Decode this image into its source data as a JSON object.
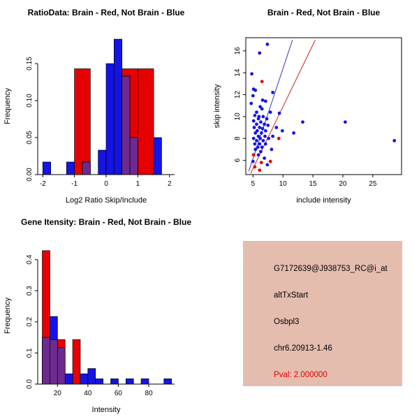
{
  "chart_data": [
    {
      "id": "ratio-hist",
      "type": "histogram",
      "title": "RatioData: Brain - Red, Not Brain - Blue",
      "xlabel": "Log2 Ratio Skip/Include",
      "ylabel": "Frequency",
      "xlim": [
        -2.16,
        2.16
      ],
      "ylim": [
        0,
        0.185
      ],
      "xticks": [
        -2,
        -1,
        0,
        1,
        2
      ],
      "xtick_labels": [
        "-2",
        "-1",
        "0",
        "1",
        "2"
      ],
      "yticks": [
        0,
        0.05,
        0.1,
        0.15
      ],
      "ytick_labels": [
        "0.00",
        "0.05",
        "0.10",
        "0.15"
      ],
      "overlap_color": "#6E2A90",
      "series": [
        {
          "name": "Brain",
          "color": "#E60000",
          "bars": [
            {
              "x0": -1.0,
              "x1": -0.5,
              "h": 0.143
            },
            {
              "x0": 0.5,
              "x1": 1.0,
              "h": 0.143
            },
            {
              "x0": 1.0,
              "x1": 1.5,
              "h": 0.143
            }
          ]
        },
        {
          "name": "Not Brain",
          "color": "#1414E6",
          "bars": [
            {
              "x0": -2.0,
              "x1": -1.75,
              "h": 0.017
            },
            {
              "x0": -1.25,
              "x1": -1.0,
              "h": 0.017
            },
            {
              "x0": -0.75,
              "x1": -0.5,
              "h": 0.017
            },
            {
              "x0": -0.25,
              "x1": 0.0,
              "h": 0.033
            },
            {
              "x0": 0.0,
              "x1": 0.25,
              "h": 0.15
            },
            {
              "x0": 0.25,
              "x1": 0.5,
              "h": 0.183
            },
            {
              "x0": 0.5,
              "x1": 0.75,
              "h": 0.133
            },
            {
              "x0": 0.75,
              "x1": 1.0,
              "h": 0.05
            },
            {
              "x0": 1.5,
              "x1": 1.75,
              "h": 0.05
            }
          ]
        }
      ]
    },
    {
      "id": "scatter",
      "type": "scatter",
      "title": "Brain - Red, Not Brain - Blue",
      "xlabel": "include intensity",
      "ylabel": "skip intensity",
      "xlim": [
        3.8,
        29.8
      ],
      "ylim": [
        4.7,
        17.2
      ],
      "xticks": [
        5,
        10,
        15,
        20,
        25
      ],
      "xtick_labels": [
        "5",
        "10",
        "15",
        "20",
        "25"
      ],
      "yticks": [
        6,
        8,
        10,
        12,
        14,
        16
      ],
      "ytick_labels": [
        "6",
        "8",
        "10",
        "12",
        "14",
        "16"
      ],
      "lines": [
        {
          "color": "#3333CC",
          "x1": 4.3,
          "y1": 5.0,
          "x2": 11.6,
          "y2": 17.0
        },
        {
          "color": "#CC2222",
          "x1": 4.6,
          "y1": 4.8,
          "x2": 15.4,
          "y2": 17.0
        }
      ],
      "series": [
        {
          "name": "Not Brain",
          "color": "#1414E6",
          "points": [
            [
              4.8,
              13.9
            ],
            [
              7.4,
              16.6
            ],
            [
              6.1,
              15.8
            ],
            [
              5.1,
              12.5
            ],
            [
              5.4,
              12.4
            ],
            [
              8.3,
              12.2
            ],
            [
              5.0,
              11.9
            ],
            [
              6.6,
              11.5
            ],
            [
              7.1,
              11.4
            ],
            [
              4.7,
              11.2
            ],
            [
              6.2,
              10.9
            ],
            [
              6.5,
              10.7
            ],
            [
              5.6,
              10.4
            ],
            [
              7.9,
              10.4
            ],
            [
              9.4,
              10.3
            ],
            [
              5.3,
              10.1
            ],
            [
              6.0,
              10.0
            ],
            [
              6.7,
              10.0
            ],
            [
              5.9,
              9.8
            ],
            [
              7.3,
              9.8
            ],
            [
              5.1,
              9.6
            ],
            [
              6.3,
              9.5
            ],
            [
              13.3,
              9.5
            ],
            [
              20.4,
              9.5
            ],
            [
              5.6,
              9.3
            ],
            [
              6.9,
              9.3
            ],
            [
              7.5,
              9.2
            ],
            [
              5.2,
              9.0
            ],
            [
              6.1,
              9.0
            ],
            [
              8.9,
              9.0
            ],
            [
              6.6,
              8.9
            ],
            [
              5.7,
              8.7
            ],
            [
              7.1,
              8.7
            ],
            [
              9.9,
              8.7
            ],
            [
              5.4,
              8.5
            ],
            [
              6.4,
              8.5
            ],
            [
              11.8,
              8.5
            ],
            [
              5.9,
              8.2
            ],
            [
              7.0,
              8.2
            ],
            [
              8.3,
              8.2
            ],
            [
              5.1,
              8.0
            ],
            [
              6.2,
              8.0
            ],
            [
              7.6,
              8.0
            ],
            [
              5.6,
              7.8
            ],
            [
              6.7,
              7.8
            ],
            [
              28.6,
              7.8
            ],
            [
              5.3,
              7.5
            ],
            [
              6.1,
              7.5
            ],
            [
              7.1,
              7.5
            ],
            [
              5.8,
              7.2
            ],
            [
              6.5,
              7.2
            ],
            [
              5.4,
              7.0
            ],
            [
              8.1,
              7.0
            ],
            [
              6.3,
              6.8
            ],
            [
              5.9,
              6.5
            ],
            [
              6.9,
              6.2
            ],
            [
              7.4,
              5.6
            ],
            [
              5.0,
              5.9
            ]
          ]
        },
        {
          "name": "Brain",
          "color": "#E60000",
          "points": [
            [
              6.5,
              13.2
            ],
            [
              9.3,
              8.0
            ],
            [
              5.1,
              6.5
            ],
            [
              6.4,
              5.8
            ],
            [
              5.3,
              5.4
            ],
            [
              6.1,
              5.1
            ],
            [
              7.9,
              5.9
            ]
          ]
        }
      ]
    },
    {
      "id": "gene-hist",
      "type": "histogram",
      "title": "Gene Itensity: Brain - Red, Not Brain - Blue",
      "xlabel": "Intensity",
      "ylabel": "Frequency",
      "xlim": [
        7,
        97
      ],
      "ylim": [
        0,
        0.44
      ],
      "xticks": [
        20,
        40,
        60,
        80
      ],
      "xtick_labels": [
        "20",
        "40",
        "60",
        "80"
      ],
      "yticks": [
        0,
        0.1,
        0.2,
        0.3,
        0.4
      ],
      "ytick_labels": [
        "0.0",
        "0.1",
        "0.2",
        "0.3",
        "0.4"
      ],
      "overlap_color": "#6E2A90",
      "series": [
        {
          "name": "Brain",
          "color": "#E60000",
          "bars": [
            {
              "x0": 10,
              "x1": 15,
              "h": 0.429
            },
            {
              "x0": 15,
              "x1": 20,
              "h": 0.143
            },
            {
              "x0": 20,
              "x1": 25,
              "h": 0.143
            },
            {
              "x0": 30,
              "x1": 35,
              "h": 0.143
            }
          ]
        },
        {
          "name": "Not Brain",
          "color": "#1414E6",
          "bars": [
            {
              "x0": 10,
              "x1": 15,
              "h": 0.15
            },
            {
              "x0": 15,
              "x1": 20,
              "h": 0.217
            },
            {
              "x0": 20,
              "x1": 25,
              "h": 0.117
            },
            {
              "x0": 25,
              "x1": 30,
              "h": 0.033
            },
            {
              "x0": 35,
              "x1": 40,
              "h": 0.033
            },
            {
              "x0": 40,
              "x1": 45,
              "h": 0.05
            },
            {
              "x0": 45,
              "x1": 50,
              "h": 0.017
            },
            {
              "x0": 55,
              "x1": 60,
              "h": 0.017
            },
            {
              "x0": 65,
              "x1": 70,
              "h": 0.017
            },
            {
              "x0": 75,
              "x1": 80,
              "h": 0.017
            },
            {
              "x0": 90,
              "x1": 95,
              "h": 0.017
            }
          ]
        }
      ]
    }
  ],
  "info_panel": {
    "bg": "#E4BDAF",
    "lines": [
      {
        "text": "G7172639@J938753_RC@i_at",
        "color": "#000000"
      },
      {
        "text": "altTxStart",
        "color": "#000000"
      },
      {
        "text": "Osbpl3",
        "color": "#000000"
      },
      {
        "text": "chr6.20913-1.46",
        "color": "#000000"
      },
      {
        "text": "Pval: 2.000000",
        "color": "#E60000"
      }
    ]
  }
}
